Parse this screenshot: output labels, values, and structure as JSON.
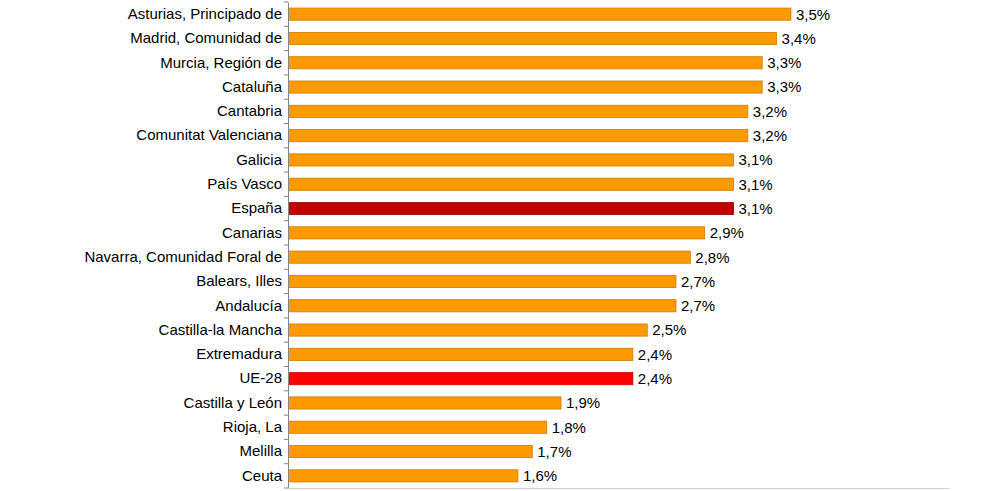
{
  "chart_data": {
    "type": "bar",
    "orientation": "horizontal",
    "categories": [
      "Asturias, Principado de",
      "Madrid, Comunidad de",
      "Murcia, Región de",
      "Cataluña",
      "Cantabria",
      "Comunitat Valenciana",
      "Galicia",
      "País Vasco",
      "España",
      "Canarias",
      "Navarra, Comunidad Foral de",
      "Balears, Illes",
      "Andalucía",
      "Castilla-la Mancha",
      "Extremadura",
      "UE-28",
      "Castilla y León",
      "Rioja, La",
      "Melilla",
      "Ceuta"
    ],
    "values": [
      3.5,
      3.4,
      3.3,
      3.3,
      3.2,
      3.2,
      3.1,
      3.1,
      3.1,
      2.9,
      2.8,
      2.7,
      2.7,
      2.5,
      2.4,
      2.4,
      1.9,
      1.8,
      1.7,
      1.6
    ],
    "value_labels": [
      "3,5%",
      "3,4%",
      "3,3%",
      "3,3%",
      "3,2%",
      "3,2%",
      "3,1%",
      "3,1%",
      "3,1%",
      "2,9%",
      "2,8%",
      "2,7%",
      "2,7%",
      "2,5%",
      "2,4%",
      "2,4%",
      "1,9%",
      "1,8%",
      "1,7%",
      "1,6%"
    ],
    "colors": [
      "#ff9900",
      "#ff9900",
      "#ff9900",
      "#ff9900",
      "#ff9900",
      "#ff9900",
      "#ff9900",
      "#ff9900",
      "#c00000",
      "#ff9900",
      "#ff9900",
      "#ff9900",
      "#ff9900",
      "#ff9900",
      "#ff9900",
      "#ff0000",
      "#ff9900",
      "#ff9900",
      "#ff9900",
      "#ff9900"
    ],
    "xlim": [
      0,
      4.6
    ],
    "data_labels": true,
    "tick_labels": "y"
  }
}
